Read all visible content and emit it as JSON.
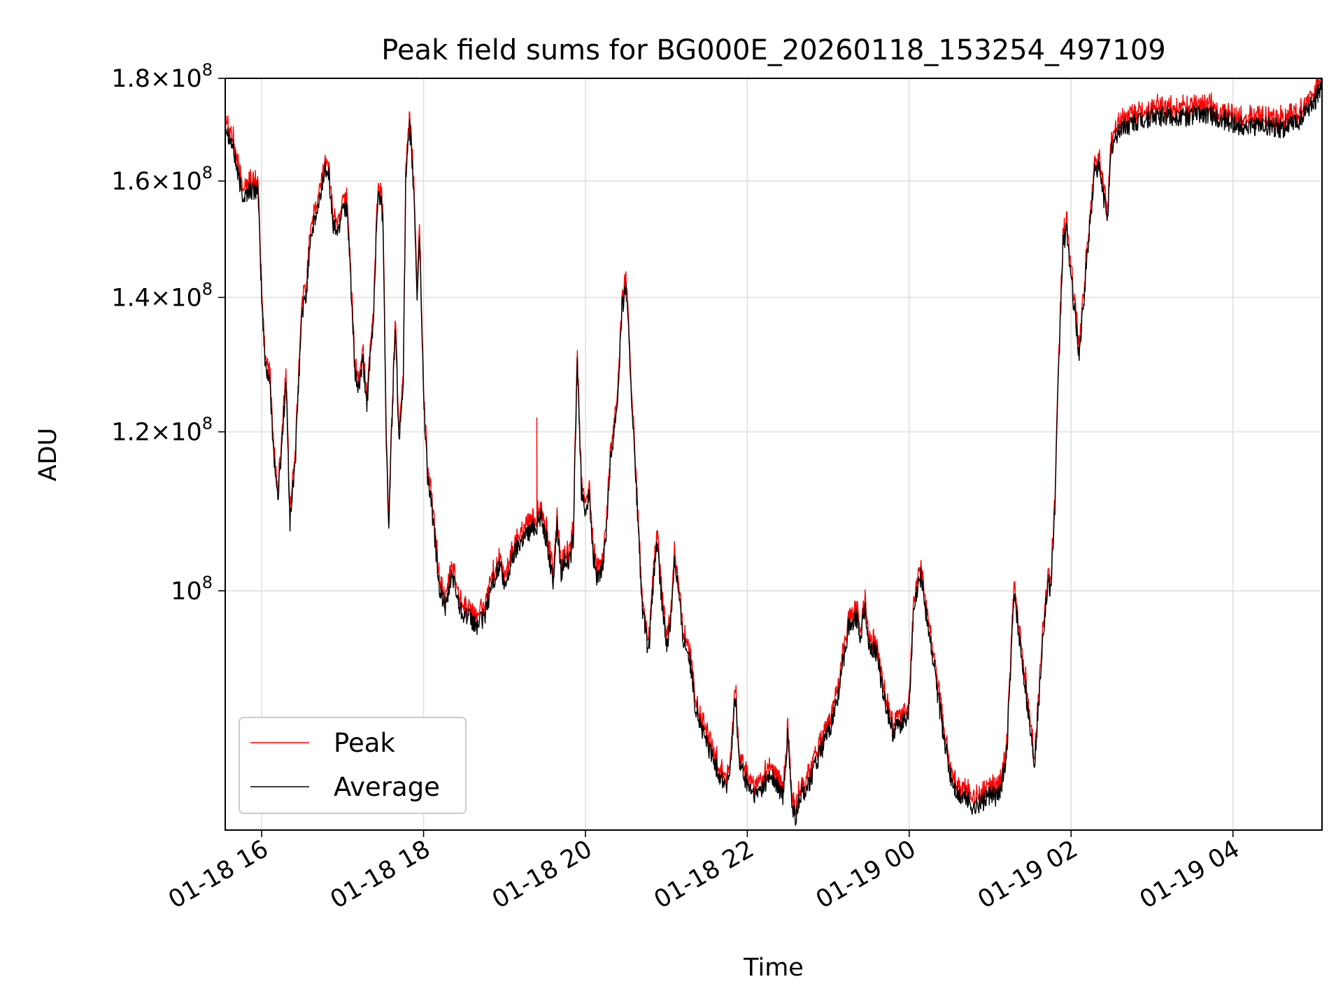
{
  "chart_data": {
    "type": "line",
    "title": "Peak field sums for BG000E_20260118_153254_497109",
    "xlabel": "Time",
    "ylabel": "ADU",
    "yscale": "log",
    "xlim_hours": [
      15.55,
      29.1
    ],
    "ylim": [
      76000000,
      180000000
    ],
    "grid": true,
    "legend_position": "lower-left",
    "x_ticks": [
      {
        "hours": 16,
        "label": "01-18 16"
      },
      {
        "hours": 18,
        "label": "01-18 18"
      },
      {
        "hours": 20,
        "label": "01-18 20"
      },
      {
        "hours": 22,
        "label": "01-18 22"
      },
      {
        "hours": 24,
        "label": "01-19 00"
      },
      {
        "hours": 26,
        "label": "01-19 02"
      },
      {
        "hours": 28,
        "label": "01-19 04"
      }
    ],
    "y_ticks": [
      {
        "value": 100000000,
        "mantissa": "",
        "exp": "8"
      },
      {
        "value": 120000000,
        "mantissa": "1.2",
        "exp": "8"
      },
      {
        "value": 140000000,
        "mantissa": "1.4",
        "exp": "8"
      },
      {
        "value": 160000000,
        "mantissa": "1.6",
        "exp": "8"
      },
      {
        "value": 180000000,
        "mantissa": "1.8",
        "exp": "8"
      }
    ],
    "series": [
      {
        "name": "Peak",
        "color": "#ff0000"
      },
      {
        "name": "Average",
        "color": "#000000"
      }
    ],
    "average_keypoints": [
      [
        15.55,
        171
      ],
      [
        15.65,
        166
      ],
      [
        15.72,
        160
      ],
      [
        15.78,
        157
      ],
      [
        15.85,
        158.5
      ],
      [
        15.9,
        158
      ],
      [
        15.95,
        159
      ],
      [
        16.0,
        140
      ],
      [
        16.04,
        130
      ],
      [
        16.1,
        127
      ],
      [
        16.15,
        117
      ],
      [
        16.2,
        111
      ],
      [
        16.24,
        117
      ],
      [
        16.3,
        127
      ],
      [
        16.35,
        108
      ],
      [
        16.42,
        117
      ],
      [
        16.5,
        138
      ],
      [
        16.55,
        140
      ],
      [
        16.6,
        150
      ],
      [
        16.7,
        155
      ],
      [
        16.78,
        162
      ],
      [
        16.82,
        163
      ],
      [
        16.88,
        152
      ],
      [
        16.95,
        151
      ],
      [
        17.0,
        156
      ],
      [
        17.05,
        155
      ],
      [
        17.1,
        143
      ],
      [
        17.15,
        128
      ],
      [
        17.2,
        126
      ],
      [
        17.25,
        130
      ],
      [
        17.3,
        124
      ],
      [
        17.38,
        136
      ],
      [
        17.43,
        156
      ],
      [
        17.47,
        158
      ],
      [
        17.5,
        152
      ],
      [
        17.54,
        118
      ],
      [
        17.57,
        107
      ],
      [
        17.6,
        118
      ],
      [
        17.65,
        135
      ],
      [
        17.7,
        118
      ],
      [
        17.75,
        128
      ],
      [
        17.78,
        160
      ],
      [
        17.83,
        170
      ],
      [
        17.88,
        158
      ],
      [
        17.92,
        140
      ],
      [
        17.95,
        150
      ],
      [
        18.0,
        125
      ],
      [
        18.05,
        114
      ],
      [
        18.1,
        110
      ],
      [
        18.2,
        100
      ],
      [
        18.28,
        98
      ],
      [
        18.35,
        102
      ],
      [
        18.45,
        98
      ],
      [
        18.55,
        97
      ],
      [
        18.65,
        96
      ],
      [
        18.75,
        97
      ],
      [
        18.85,
        101
      ],
      [
        18.95,
        103
      ],
      [
        19.0,
        100
      ],
      [
        19.1,
        104
      ],
      [
        19.2,
        106
      ],
      [
        19.3,
        107
      ],
      [
        19.4,
        108
      ],
      [
        19.45,
        109
      ],
      [
        19.5,
        107
      ],
      [
        19.55,
        104
      ],
      [
        19.6,
        101
      ],
      [
        19.65,
        108
      ],
      [
        19.7,
        102
      ],
      [
        19.75,
        104
      ],
      [
        19.8,
        103
      ],
      [
        19.85,
        106
      ],
      [
        19.9,
        130
      ],
      [
        19.95,
        112
      ],
      [
        20.0,
        110
      ],
      [
        20.05,
        111
      ],
      [
        20.1,
        104
      ],
      [
        20.15,
        101
      ],
      [
        20.2,
        102
      ],
      [
        20.25,
        106
      ],
      [
        20.3,
        115
      ],
      [
        20.35,
        120
      ],
      [
        20.4,
        125
      ],
      [
        20.45,
        138
      ],
      [
        20.5,
        142
      ],
      [
        20.55,
        130
      ],
      [
        20.6,
        118
      ],
      [
        20.65,
        108
      ],
      [
        20.7,
        98
      ],
      [
        20.78,
        93
      ],
      [
        20.88,
        106
      ],
      [
        20.95,
        98
      ],
      [
        21.0,
        94
      ],
      [
        21.05,
        96
      ],
      [
        21.1,
        104
      ],
      [
        21.15,
        100
      ],
      [
        21.2,
        95
      ],
      [
        21.28,
        93
      ],
      [
        21.35,
        88
      ],
      [
        21.45,
        85
      ],
      [
        21.55,
        83
      ],
      [
        21.65,
        81
      ],
      [
        21.75,
        80
      ],
      [
        21.8,
        82
      ],
      [
        21.85,
        89
      ],
      [
        21.9,
        82
      ],
      [
        22.0,
        80
      ],
      [
        22.1,
        79
      ],
      [
        22.2,
        80
      ],
      [
        22.3,
        81
      ],
      [
        22.35,
        80
      ],
      [
        22.45,
        79
      ],
      [
        22.5,
        85
      ],
      [
        22.55,
        78
      ],
      [
        22.6,
        77
      ],
      [
        22.65,
        79
      ],
      [
        22.75,
        80
      ],
      [
        22.85,
        82
      ],
      [
        22.95,
        84
      ],
      [
        23.05,
        86
      ],
      [
        23.15,
        90
      ],
      [
        23.25,
        96
      ],
      [
        23.35,
        97
      ],
      [
        23.4,
        95
      ],
      [
        23.45,
        98
      ],
      [
        23.5,
        94
      ],
      [
        23.6,
        93
      ],
      [
        23.7,
        88
      ],
      [
        23.8,
        85
      ],
      [
        23.9,
        86
      ],
      [
        24.0,
        87
      ],
      [
        24.05,
        97
      ],
      [
        24.1,
        100
      ],
      [
        24.15,
        102
      ],
      [
        24.2,
        98
      ],
      [
        24.3,
        92
      ],
      [
        24.4,
        86
      ],
      [
        24.5,
        81
      ],
      [
        24.6,
        79
      ],
      [
        24.7,
        79
      ],
      [
        24.8,
        78
      ],
      [
        24.9,
        78.5
      ],
      [
        25.0,
        79
      ],
      [
        25.1,
        79
      ],
      [
        25.2,
        82
      ],
      [
        25.3,
        100
      ],
      [
        25.35,
        95
      ],
      [
        25.4,
        92
      ],
      [
        25.5,
        85
      ],
      [
        25.55,
        82
      ],
      [
        25.6,
        88
      ],
      [
        25.65,
        95
      ],
      [
        25.72,
        101
      ],
      [
        25.75,
        100
      ],
      [
        25.8,
        110
      ],
      [
        25.85,
        130
      ],
      [
        25.9,
        149
      ],
      [
        25.95,
        151
      ],
      [
        26.0,
        143
      ],
      [
        26.05,
        137
      ],
      [
        26.1,
        131
      ],
      [
        26.15,
        138
      ],
      [
        26.2,
        147
      ],
      [
        26.25,
        155
      ],
      [
        26.3,
        163
      ],
      [
        26.35,
        162
      ],
      [
        26.4,
        157
      ],
      [
        26.45,
        154
      ],
      [
        26.5,
        166
      ],
      [
        26.6,
        170
      ],
      [
        26.8,
        171
      ],
      [
        27.0,
        172
      ],
      [
        27.2,
        172.5
      ],
      [
        27.4,
        172
      ],
      [
        27.6,
        173
      ],
      [
        27.8,
        172
      ],
      [
        28.0,
        171
      ],
      [
        28.2,
        170
      ],
      [
        28.4,
        170.5
      ],
      [
        28.6,
        170
      ],
      [
        28.8,
        171
      ],
      [
        29.0,
        175
      ],
      [
        29.1,
        179
      ]
    ],
    "peak_spikes": [
      [
        19.4,
        122
      ]
    ]
  }
}
